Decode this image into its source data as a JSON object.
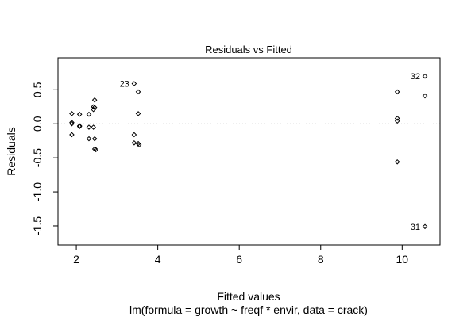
{
  "chart_data": {
    "type": "scatter",
    "title": "Residuals vs Fitted",
    "xlabel": "Fitted values",
    "ylabel": "Residuals",
    "subtitle": "lm(formula = growth ~ freqf * envir, data = crack)",
    "xlim": [
      1.55,
      10.93
    ],
    "ylim": [
      -1.78,
      0.97
    ],
    "xticks": [
      2,
      4,
      6,
      8,
      10
    ],
    "yticks": [
      -1.5,
      -1.0,
      -0.5,
      0.0,
      0.5
    ],
    "ytick_labels": [
      "-1.5",
      "-1.0",
      "-0.5",
      "0.0",
      "0.5"
    ],
    "zero_line": true,
    "points": [
      {
        "x": 1.89,
        "y": 0.15
      },
      {
        "x": 1.89,
        "y": 0.02
      },
      {
        "x": 1.89,
        "y": 0.0
      },
      {
        "x": 1.89,
        "y": -0.16
      },
      {
        "x": 2.08,
        "y": 0.14
      },
      {
        "x": 2.08,
        "y": -0.03
      },
      {
        "x": 2.08,
        "y": -0.04
      },
      {
        "x": 2.31,
        "y": 0.14
      },
      {
        "x": 2.31,
        "y": -0.05
      },
      {
        "x": 2.31,
        "y": -0.22
      },
      {
        "x": 2.42,
        "y": 0.21
      },
      {
        "x": 2.42,
        "y": 0.25
      },
      {
        "x": 2.42,
        "y": -0.05
      },
      {
        "x": 2.45,
        "y": 0.35
      },
      {
        "x": 2.45,
        "y": 0.24
      },
      {
        "x": 2.45,
        "y": -0.22
      },
      {
        "x": 2.45,
        "y": -0.37
      },
      {
        "x": 2.48,
        "y": -0.38
      },
      {
        "x": 3.42,
        "y": 0.59
      },
      {
        "x": 3.42,
        "y": -0.16
      },
      {
        "x": 3.42,
        "y": -0.28
      },
      {
        "x": 3.52,
        "y": 0.47
      },
      {
        "x": 3.52,
        "y": 0.15
      },
      {
        "x": 3.52,
        "y": -0.29
      },
      {
        "x": 3.54,
        "y": -0.31
      },
      {
        "x": 9.88,
        "y": 0.47
      },
      {
        "x": 9.88,
        "y": 0.08
      },
      {
        "x": 9.88,
        "y": 0.04
      },
      {
        "x": 9.88,
        "y": -0.56
      },
      {
        "x": 10.56,
        "y": 0.7
      },
      {
        "x": 10.56,
        "y": 0.41
      },
      {
        "x": 10.56,
        "y": -1.51
      }
    ],
    "annotations": [
      {
        "label": "23",
        "x": 3.42,
        "y": 0.59
      },
      {
        "label": "32",
        "x": 10.56,
        "y": 0.7
      },
      {
        "label": "31",
        "x": 10.56,
        "y": -1.51
      }
    ]
  }
}
